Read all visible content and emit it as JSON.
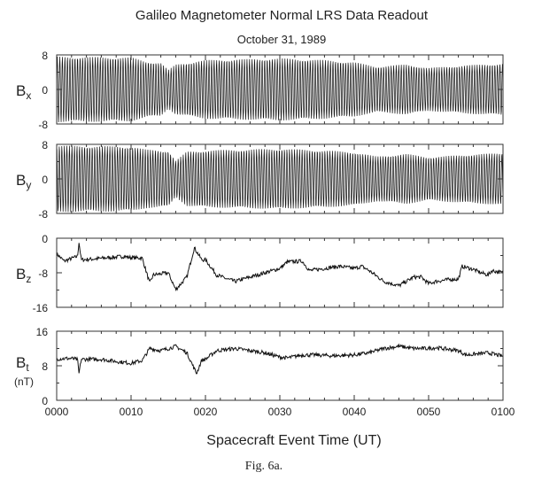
{
  "chart_data": {
    "type": "line",
    "title": "Galileo Magnetometer Normal LRS Data Readout",
    "subtitle": "October 31, 1989",
    "xlabel": "Spacecraft Event Time (UT)",
    "caption": "Fig. 6a.",
    "x_tick_labels": [
      "0000",
      "0010",
      "0020",
      "0030",
      "0040",
      "0050",
      "0100"
    ],
    "x_range_minutes": [
      0,
      60
    ],
    "grid": false,
    "color": "#111111",
    "panels": [
      {
        "name": "Bx",
        "label_main": "B",
        "label_sub": "x",
        "unit": "",
        "ylim": [
          -8,
          8
        ],
        "y_tick_labels": [
          "8",
          "0",
          "-8"
        ],
        "kind": "spin-oscillation",
        "spin_period_min": 0.34,
        "amplitude_envelope": [
          [
            0,
            7.6
          ],
          [
            10,
            7.4
          ],
          [
            12,
            6.5
          ],
          [
            14,
            6.2
          ],
          [
            15,
            4.5
          ],
          [
            16,
            5.8
          ],
          [
            20,
            6.8
          ],
          [
            30,
            7.2
          ],
          [
            36,
            6.8
          ],
          [
            40,
            6.3
          ],
          [
            43,
            5.3
          ],
          [
            47,
            5.8
          ],
          [
            50,
            5.0
          ],
          [
            55,
            5.6
          ],
          [
            60,
            6.0
          ]
        ]
      },
      {
        "name": "By",
        "label_main": "B",
        "label_sub": "y",
        "unit": "",
        "ylim": [
          -8,
          8
        ],
        "y_tick_labels": [
          "8",
          "0",
          "-8"
        ],
        "kind": "spin-oscillation",
        "spin_period_min": 0.34,
        "amplitude_envelope": [
          [
            0,
            7.7
          ],
          [
            10,
            7.5
          ],
          [
            12,
            6.8
          ],
          [
            15,
            6.5
          ],
          [
            16,
            4.2
          ],
          [
            17.5,
            6.3
          ],
          [
            20,
            6.6
          ],
          [
            30,
            7.0
          ],
          [
            36,
            6.6
          ],
          [
            40,
            6.2
          ],
          [
            43,
            5.2
          ],
          [
            47,
            5.8
          ],
          [
            50,
            5.0
          ],
          [
            55,
            5.6
          ],
          [
            60,
            6.0
          ]
        ]
      },
      {
        "name": "Bz",
        "label_main": "B",
        "label_sub": "z",
        "unit": "",
        "ylim": [
          -16,
          0
        ],
        "y_tick_labels": [
          "0",
          "-8",
          "-16"
        ],
        "kind": "series",
        "points": [
          [
            0,
            -3.6
          ],
          [
            1,
            -5.3
          ],
          [
            2.8,
            -4.2
          ],
          [
            3,
            -0.9
          ],
          [
            3.3,
            -5
          ],
          [
            5,
            -4.8
          ],
          [
            7,
            -4.5
          ],
          [
            9,
            -4.2
          ],
          [
            10,
            -4.5
          ],
          [
            11.5,
            -4.6
          ],
          [
            12.5,
            -10.4
          ],
          [
            13,
            -8.5
          ],
          [
            15,
            -8
          ],
          [
            16,
            -11.9
          ],
          [
            17.5,
            -9
          ],
          [
            18.5,
            -2.2
          ],
          [
            19.5,
            -5
          ],
          [
            20,
            -5
          ],
          [
            21.5,
            -8.5
          ],
          [
            23,
            -9.5
          ],
          [
            24,
            -10
          ],
          [
            26,
            -9
          ],
          [
            28,
            -8
          ],
          [
            30,
            -7
          ],
          [
            31,
            -5.5
          ],
          [
            33,
            -5.3
          ],
          [
            34,
            -7.5
          ],
          [
            36,
            -7
          ],
          [
            38,
            -6.5
          ],
          [
            40,
            -7
          ],
          [
            41,
            -6.5
          ],
          [
            42,
            -7.5
          ],
          [
            44,
            -10
          ],
          [
            45,
            -10.5
          ],
          [
            46,
            -11
          ],
          [
            47,
            -10
          ],
          [
            48,
            -9
          ],
          [
            49,
            -9
          ],
          [
            50,
            -10.5
          ],
          [
            51,
            -10
          ],
          [
            53,
            -9.5
          ],
          [
            54,
            -9.5
          ],
          [
            54.5,
            -6.5
          ],
          [
            56,
            -7.2
          ],
          [
            57,
            -8
          ],
          [
            58,
            -8.5
          ],
          [
            58.5,
            -7.5
          ],
          [
            60,
            -8
          ]
        ]
      },
      {
        "name": "Bt",
        "label_main": "B",
        "label_sub": "t",
        "unit": "(nT)",
        "ylim": [
          0,
          16
        ],
        "y_tick_labels": [
          "16",
          "8",
          "0"
        ],
        "kind": "series",
        "points": [
          [
            0,
            9.6
          ],
          [
            2,
            9.7
          ],
          [
            2.8,
            9.4
          ],
          [
            3,
            6.2
          ],
          [
            3.3,
            9.5
          ],
          [
            6,
            9.5
          ],
          [
            8,
            9.0
          ],
          [
            10,
            8.6
          ],
          [
            11.5,
            9.2
          ],
          [
            12.5,
            12
          ],
          [
            14,
            11.5
          ],
          [
            16,
            12.5
          ],
          [
            17.5,
            11
          ],
          [
            18.8,
            6.2
          ],
          [
            19.5,
            9.3
          ],
          [
            20,
            9.5
          ],
          [
            21.5,
            11.5
          ],
          [
            24,
            12
          ],
          [
            26,
            11.5
          ],
          [
            28,
            11
          ],
          [
            30,
            10
          ],
          [
            31,
            9.8
          ],
          [
            33,
            10.5
          ],
          [
            35,
            10.5
          ],
          [
            37,
            10.3
          ],
          [
            40,
            10.5
          ],
          [
            42,
            11
          ],
          [
            44,
            12
          ],
          [
            46,
            12.5
          ],
          [
            48,
            12
          ],
          [
            50,
            12
          ],
          [
            51,
            12.2
          ],
          [
            54,
            11.5
          ],
          [
            55,
            10.5
          ],
          [
            57,
            10.8
          ],
          [
            58,
            11
          ],
          [
            60,
            10.2
          ]
        ]
      }
    ]
  }
}
